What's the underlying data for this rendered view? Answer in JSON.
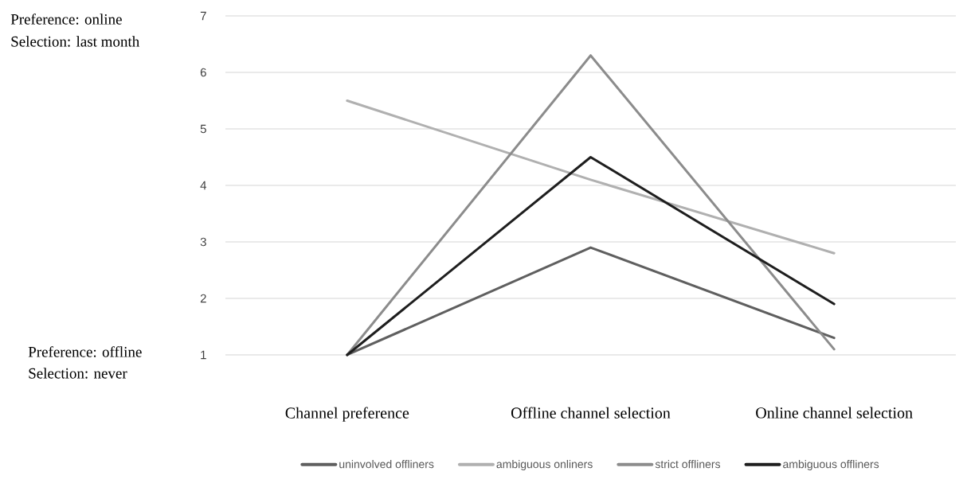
{
  "chart_data": {
    "type": "line",
    "categories": [
      "Channel preference",
      "Offline channel selection",
      "Online channel selection"
    ],
    "series": [
      {
        "name": "uninvolved offliners",
        "color": "#5f5f5f",
        "values": [
          1,
          2.9,
          1.3
        ]
      },
      {
        "name": "ambiguous onliners",
        "color": "#b0b0b0",
        "values": [
          5.5,
          4.1,
          2.8
        ]
      },
      {
        "name": "strict offliners",
        "color": "#8c8c8c",
        "values": [
          1,
          6.3,
          1.1
        ]
      },
      {
        "name": "ambiguous offliners",
        "color": "#1e1e1e",
        "values": [
          1,
          4.5,
          1.9
        ]
      }
    ],
    "ylim": [
      1,
      7
    ],
    "yticks": [
      1,
      2,
      3,
      4,
      5,
      6,
      7
    ],
    "grid": "y",
    "legend": "bottom",
    "marker": "none",
    "line_style": "solid",
    "annotations": [
      "Preference: online",
      "Selection: last month",
      "Preference: offline",
      "Selection: never"
    ]
  }
}
